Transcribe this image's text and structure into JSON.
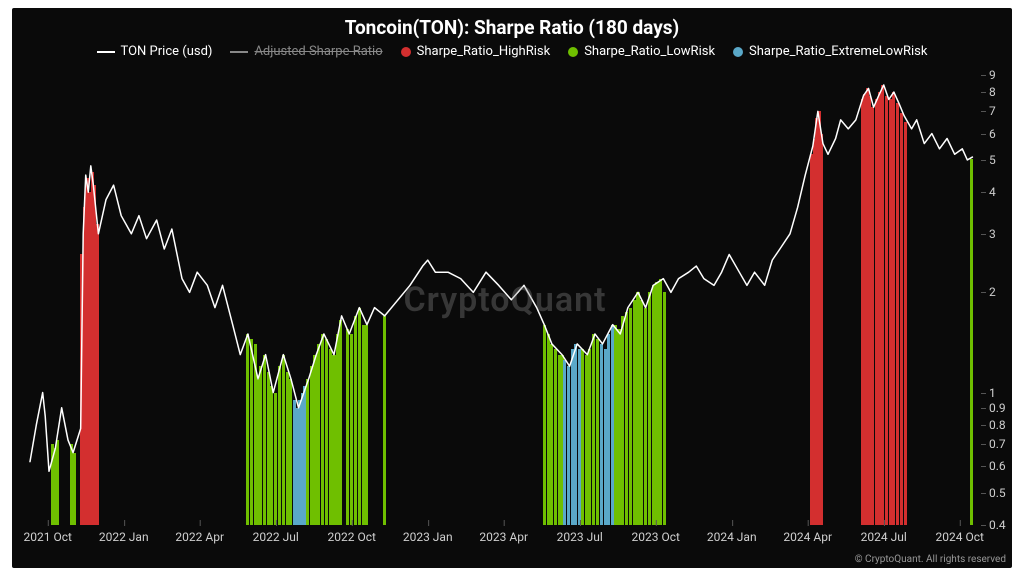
{
  "title": "Toncoin(TON): Sharpe Ratio (180 days)",
  "watermark": "CryptoQuant",
  "copyright": "© CryptoQuant. All rights reserved",
  "legend": [
    {
      "label": "TON Price (usd)",
      "type": "line",
      "color": "#ffffff",
      "strikethrough": false
    },
    {
      "label": "Adjusted Sharpe Ratio",
      "type": "line",
      "color": "#888888",
      "strikethrough": true
    },
    {
      "label": "Sharpe_Ratio_HighRisk",
      "type": "dot",
      "color": "#d32f2f"
    },
    {
      "label": "Sharpe_Ratio_LowRisk",
      "type": "dot",
      "color": "#6fbf00"
    },
    {
      "label": "Sharpe_Ratio_ExtremeLowRisk",
      "type": "dot",
      "color": "#5aa8c8"
    }
  ],
  "colors": {
    "background": "#0a0a0a",
    "price_line": "#ffffff",
    "high_risk": "#d32f2f",
    "low_risk": "#6fbf00",
    "extreme_low_risk": "#5aa8c8",
    "axis_text": "#cfcfcf",
    "grid": "#555555"
  },
  "chart": {
    "type": "line_with_bars",
    "x_domain_index": [
      0,
      37.5
    ],
    "x_ticks": [
      {
        "pos": 0.7,
        "label": "2021 Oct"
      },
      {
        "pos": 3.7,
        "label": "2022 Jan"
      },
      {
        "pos": 6.7,
        "label": "2022 Apr"
      },
      {
        "pos": 9.7,
        "label": "2022 Jul"
      },
      {
        "pos": 12.7,
        "label": "2022 Oct"
      },
      {
        "pos": 15.7,
        "label": "2023 Jan"
      },
      {
        "pos": 18.7,
        "label": "2023 Apr"
      },
      {
        "pos": 21.7,
        "label": "2023 Jul"
      },
      {
        "pos": 24.7,
        "label": "2023 Oct"
      },
      {
        "pos": 27.7,
        "label": "2024 Jan"
      },
      {
        "pos": 30.7,
        "label": "2024 Apr"
      },
      {
        "pos": 33.7,
        "label": "2024 Jul"
      },
      {
        "pos": 36.7,
        "label": "2024 Oct"
      }
    ],
    "y_scale": "log",
    "y_domain": [
      0.4,
      9
    ],
    "y_ticks": [
      0.4,
      0.5,
      0.6,
      0.7,
      0.8,
      0.9,
      1,
      2,
      3,
      4,
      5,
      6,
      7,
      8,
      9
    ],
    "price_color": "#ffffff",
    "price_line_width": 1.5,
    "price_series": [
      [
        0,
        0.62
      ],
      [
        0.25,
        0.8
      ],
      [
        0.5,
        1.0
      ],
      [
        0.6,
        0.85
      ],
      [
        0.75,
        0.58
      ],
      [
        1.0,
        0.68
      ],
      [
        1.25,
        0.9
      ],
      [
        1.5,
        0.72
      ],
      [
        1.7,
        0.66
      ],
      [
        2.0,
        0.78
      ],
      [
        2.1,
        3.0
      ],
      [
        2.2,
        4.5
      ],
      [
        2.3,
        4.0
      ],
      [
        2.4,
        4.8
      ],
      [
        2.5,
        4.2
      ],
      [
        2.7,
        3.0
      ],
      [
        3.0,
        3.8
      ],
      [
        3.3,
        4.2
      ],
      [
        3.6,
        3.4
      ],
      [
        4.0,
        3.0
      ],
      [
        4.3,
        3.4
      ],
      [
        4.6,
        2.9
      ],
      [
        5.0,
        3.3
      ],
      [
        5.3,
        2.7
      ],
      [
        5.6,
        3.1
      ],
      [
        6.0,
        2.2
      ],
      [
        6.3,
        2.0
      ],
      [
        6.6,
        2.3
      ],
      [
        7.0,
        2.1
      ],
      [
        7.3,
        1.8
      ],
      [
        7.6,
        2.1
      ],
      [
        8.0,
        1.6
      ],
      [
        8.3,
        1.3
      ],
      [
        8.6,
        1.5
      ],
      [
        9.0,
        1.1
      ],
      [
        9.3,
        1.3
      ],
      [
        9.6,
        1.0
      ],
      [
        10.0,
        1.3
      ],
      [
        10.3,
        1.1
      ],
      [
        10.6,
        0.9
      ],
      [
        11.0,
        1.1
      ],
      [
        11.3,
        1.3
      ],
      [
        11.6,
        1.5
      ],
      [
        12.0,
        1.3
      ],
      [
        12.3,
        1.7
      ],
      [
        12.6,
        1.5
      ],
      [
        13.0,
        1.8
      ],
      [
        13.3,
        1.6
      ],
      [
        13.6,
        1.8
      ],
      [
        14.0,
        1.7
      ],
      [
        15.0,
        2.1
      ],
      [
        15.5,
        2.4
      ],
      [
        15.7,
        2.5
      ],
      [
        16.0,
        2.3
      ],
      [
        16.5,
        2.3
      ],
      [
        17.0,
        2.2
      ],
      [
        17.5,
        2.0
      ],
      [
        18.0,
        2.3
      ],
      [
        18.5,
        2.1
      ],
      [
        19.0,
        1.9
      ],
      [
        19.5,
        2.1
      ],
      [
        20.0,
        1.8
      ],
      [
        20.3,
        1.6
      ],
      [
        20.6,
        1.4
      ],
      [
        21.0,
        1.3
      ],
      [
        21.3,
        1.2
      ],
      [
        21.6,
        1.4
      ],
      [
        22.0,
        1.3
      ],
      [
        22.3,
        1.5
      ],
      [
        22.6,
        1.4
      ],
      [
        23.0,
        1.6
      ],
      [
        23.3,
        1.5
      ],
      [
        23.6,
        1.8
      ],
      [
        24.0,
        2.0
      ],
      [
        24.3,
        1.8
      ],
      [
        24.6,
        2.1
      ],
      [
        25.0,
        2.2
      ],
      [
        25.3,
        2.0
      ],
      [
        25.6,
        2.2
      ],
      [
        26.0,
        2.3
      ],
      [
        26.3,
        2.4
      ],
      [
        26.6,
        2.2
      ],
      [
        27.0,
        2.1
      ],
      [
        27.3,
        2.3
      ],
      [
        27.6,
        2.6
      ],
      [
        28.0,
        2.3
      ],
      [
        28.3,
        2.1
      ],
      [
        28.6,
        2.3
      ],
      [
        29.0,
        2.1
      ],
      [
        29.3,
        2.5
      ],
      [
        29.6,
        2.7
      ],
      [
        30.0,
        3.0
      ],
      [
        30.3,
        3.6
      ],
      [
        30.6,
        4.5
      ],
      [
        30.9,
        5.5
      ],
      [
        31.1,
        7.0
      ],
      [
        31.3,
        5.6
      ],
      [
        31.5,
        5.2
      ],
      [
        31.8,
        5.8
      ],
      [
        32.0,
        6.6
      ],
      [
        32.3,
        6.2
      ],
      [
        32.6,
        6.6
      ],
      [
        32.9,
        7.8
      ],
      [
        33.1,
        8.2
      ],
      [
        33.3,
        7.2
      ],
      [
        33.5,
        7.8
      ],
      [
        33.7,
        8.4
      ],
      [
        33.9,
        7.6
      ],
      [
        34.1,
        8.0
      ],
      [
        34.3,
        7.4
      ],
      [
        34.5,
        6.8
      ],
      [
        34.8,
        6.2
      ],
      [
        35.0,
        6.6
      ],
      [
        35.3,
        5.6
      ],
      [
        35.6,
        6.0
      ],
      [
        35.9,
        5.4
      ],
      [
        36.2,
        5.8
      ],
      [
        36.5,
        5.2
      ],
      [
        36.8,
        5.4
      ],
      [
        37.0,
        5.0
      ],
      [
        37.2,
        5.1
      ]
    ],
    "bar_width_index": 0.12,
    "bar_groups": [
      {
        "color": "#6fbf00",
        "bars": [
          [
            0.9,
            0.7
          ],
          [
            1.0,
            0.68
          ],
          [
            1.1,
            0.72
          ]
        ]
      },
      {
        "color": "#6fbf00",
        "bars": [
          [
            1.65,
            0.7
          ],
          [
            1.75,
            0.66
          ]
        ]
      },
      {
        "color": "#d32f2f",
        "bars": [
          [
            2.05,
            2.6
          ],
          [
            2.15,
            3.6
          ],
          [
            2.25,
            4.4
          ],
          [
            2.35,
            4.0
          ],
          [
            2.45,
            4.6
          ],
          [
            2.55,
            4.2
          ],
          [
            2.65,
            3.2
          ]
        ]
      },
      {
        "color": "#6fbf00",
        "bars": [
          [
            8.6,
            1.5
          ],
          [
            8.75,
            1.45
          ],
          [
            8.9,
            1.4
          ],
          [
            9.0,
            1.1
          ],
          [
            9.1,
            1.2
          ],
          [
            9.25,
            1.3
          ],
          [
            9.4,
            1.15
          ],
          [
            9.55,
            1.05
          ],
          [
            9.7,
            1.0
          ],
          [
            9.85,
            1.2
          ],
          [
            10.0,
            1.3
          ],
          [
            10.15,
            1.15
          ],
          [
            10.3,
            1.1
          ],
          [
            10.95,
            1.1
          ],
          [
            11.1,
            1.2
          ],
          [
            11.25,
            1.3
          ],
          [
            11.4,
            1.4
          ],
          [
            11.55,
            1.5
          ],
          [
            11.7,
            1.45
          ],
          [
            11.85,
            1.35
          ],
          [
            12.0,
            1.3
          ],
          [
            12.15,
            1.5
          ],
          [
            12.25,
            1.65
          ],
          [
            12.55,
            1.55
          ],
          [
            12.7,
            1.5
          ],
          [
            12.85,
            1.7
          ],
          [
            13.0,
            1.8
          ],
          [
            13.15,
            1.6
          ],
          [
            13.3,
            1.6
          ]
        ]
      },
      {
        "color": "#5aa8c8",
        "bars": [
          [
            10.45,
            0.95
          ],
          [
            10.55,
            0.9
          ],
          [
            10.65,
            0.95
          ],
          [
            10.75,
            1.0
          ],
          [
            10.85,
            1.05
          ]
        ]
      },
      {
        "color": "#6fbf00",
        "bars": [
          [
            14.0,
            1.7
          ]
        ]
      },
      {
        "color": "#6fbf00",
        "bars": [
          [
            20.3,
            1.6
          ],
          [
            20.45,
            1.5
          ],
          [
            20.6,
            1.4
          ],
          [
            20.75,
            1.35
          ],
          [
            20.9,
            1.3
          ],
          [
            21.0,
            1.3
          ],
          [
            21.8,
            1.35
          ],
          [
            21.95,
            1.3
          ],
          [
            22.1,
            1.35
          ],
          [
            22.25,
            1.5
          ],
          [
            22.4,
            1.45
          ],
          [
            23.1,
            1.6
          ],
          [
            23.25,
            1.55
          ],
          [
            23.4,
            1.7
          ],
          [
            23.55,
            1.75
          ],
          [
            23.7,
            1.8
          ],
          [
            23.85,
            1.9
          ],
          [
            24.0,
            2.0
          ],
          [
            24.15,
            1.9
          ],
          [
            24.3,
            1.8
          ],
          [
            24.45,
            2.0
          ],
          [
            24.6,
            2.1
          ],
          [
            24.75,
            2.15
          ],
          [
            24.9,
            2.2
          ],
          [
            25.05,
            2.0
          ]
        ]
      },
      {
        "color": "#5aa8c8",
        "bars": [
          [
            21.1,
            1.25
          ],
          [
            21.25,
            1.2
          ],
          [
            21.4,
            1.35
          ],
          [
            21.55,
            1.4
          ],
          [
            21.7,
            1.35
          ],
          [
            22.55,
            1.4
          ],
          [
            22.7,
            1.35
          ],
          [
            22.85,
            1.5
          ],
          [
            23.0,
            1.6
          ]
        ]
      },
      {
        "color": "#d32f2f",
        "bars": [
          [
            30.85,
            5.2
          ],
          [
            30.95,
            5.8
          ],
          [
            31.05,
            6.7
          ],
          [
            31.15,
            7.0
          ],
          [
            31.25,
            6.0
          ]
        ]
      },
      {
        "color": "#d32f2f",
        "bars": [
          [
            32.85,
            7.6
          ],
          [
            32.95,
            7.9
          ],
          [
            33.05,
            8.2
          ],
          [
            33.15,
            7.8
          ],
          [
            33.25,
            7.2
          ],
          [
            33.4,
            7.6
          ],
          [
            33.55,
            8.0
          ],
          [
            33.65,
            8.4
          ],
          [
            33.8,
            7.8
          ],
          [
            33.95,
            7.6
          ],
          [
            34.1,
            8.0
          ],
          [
            34.25,
            7.4
          ],
          [
            34.4,
            6.9
          ],
          [
            34.55,
            6.5
          ]
        ]
      },
      {
        "color": "#6fbf00",
        "bars": [
          [
            37.15,
            5.05
          ]
        ]
      }
    ]
  }
}
